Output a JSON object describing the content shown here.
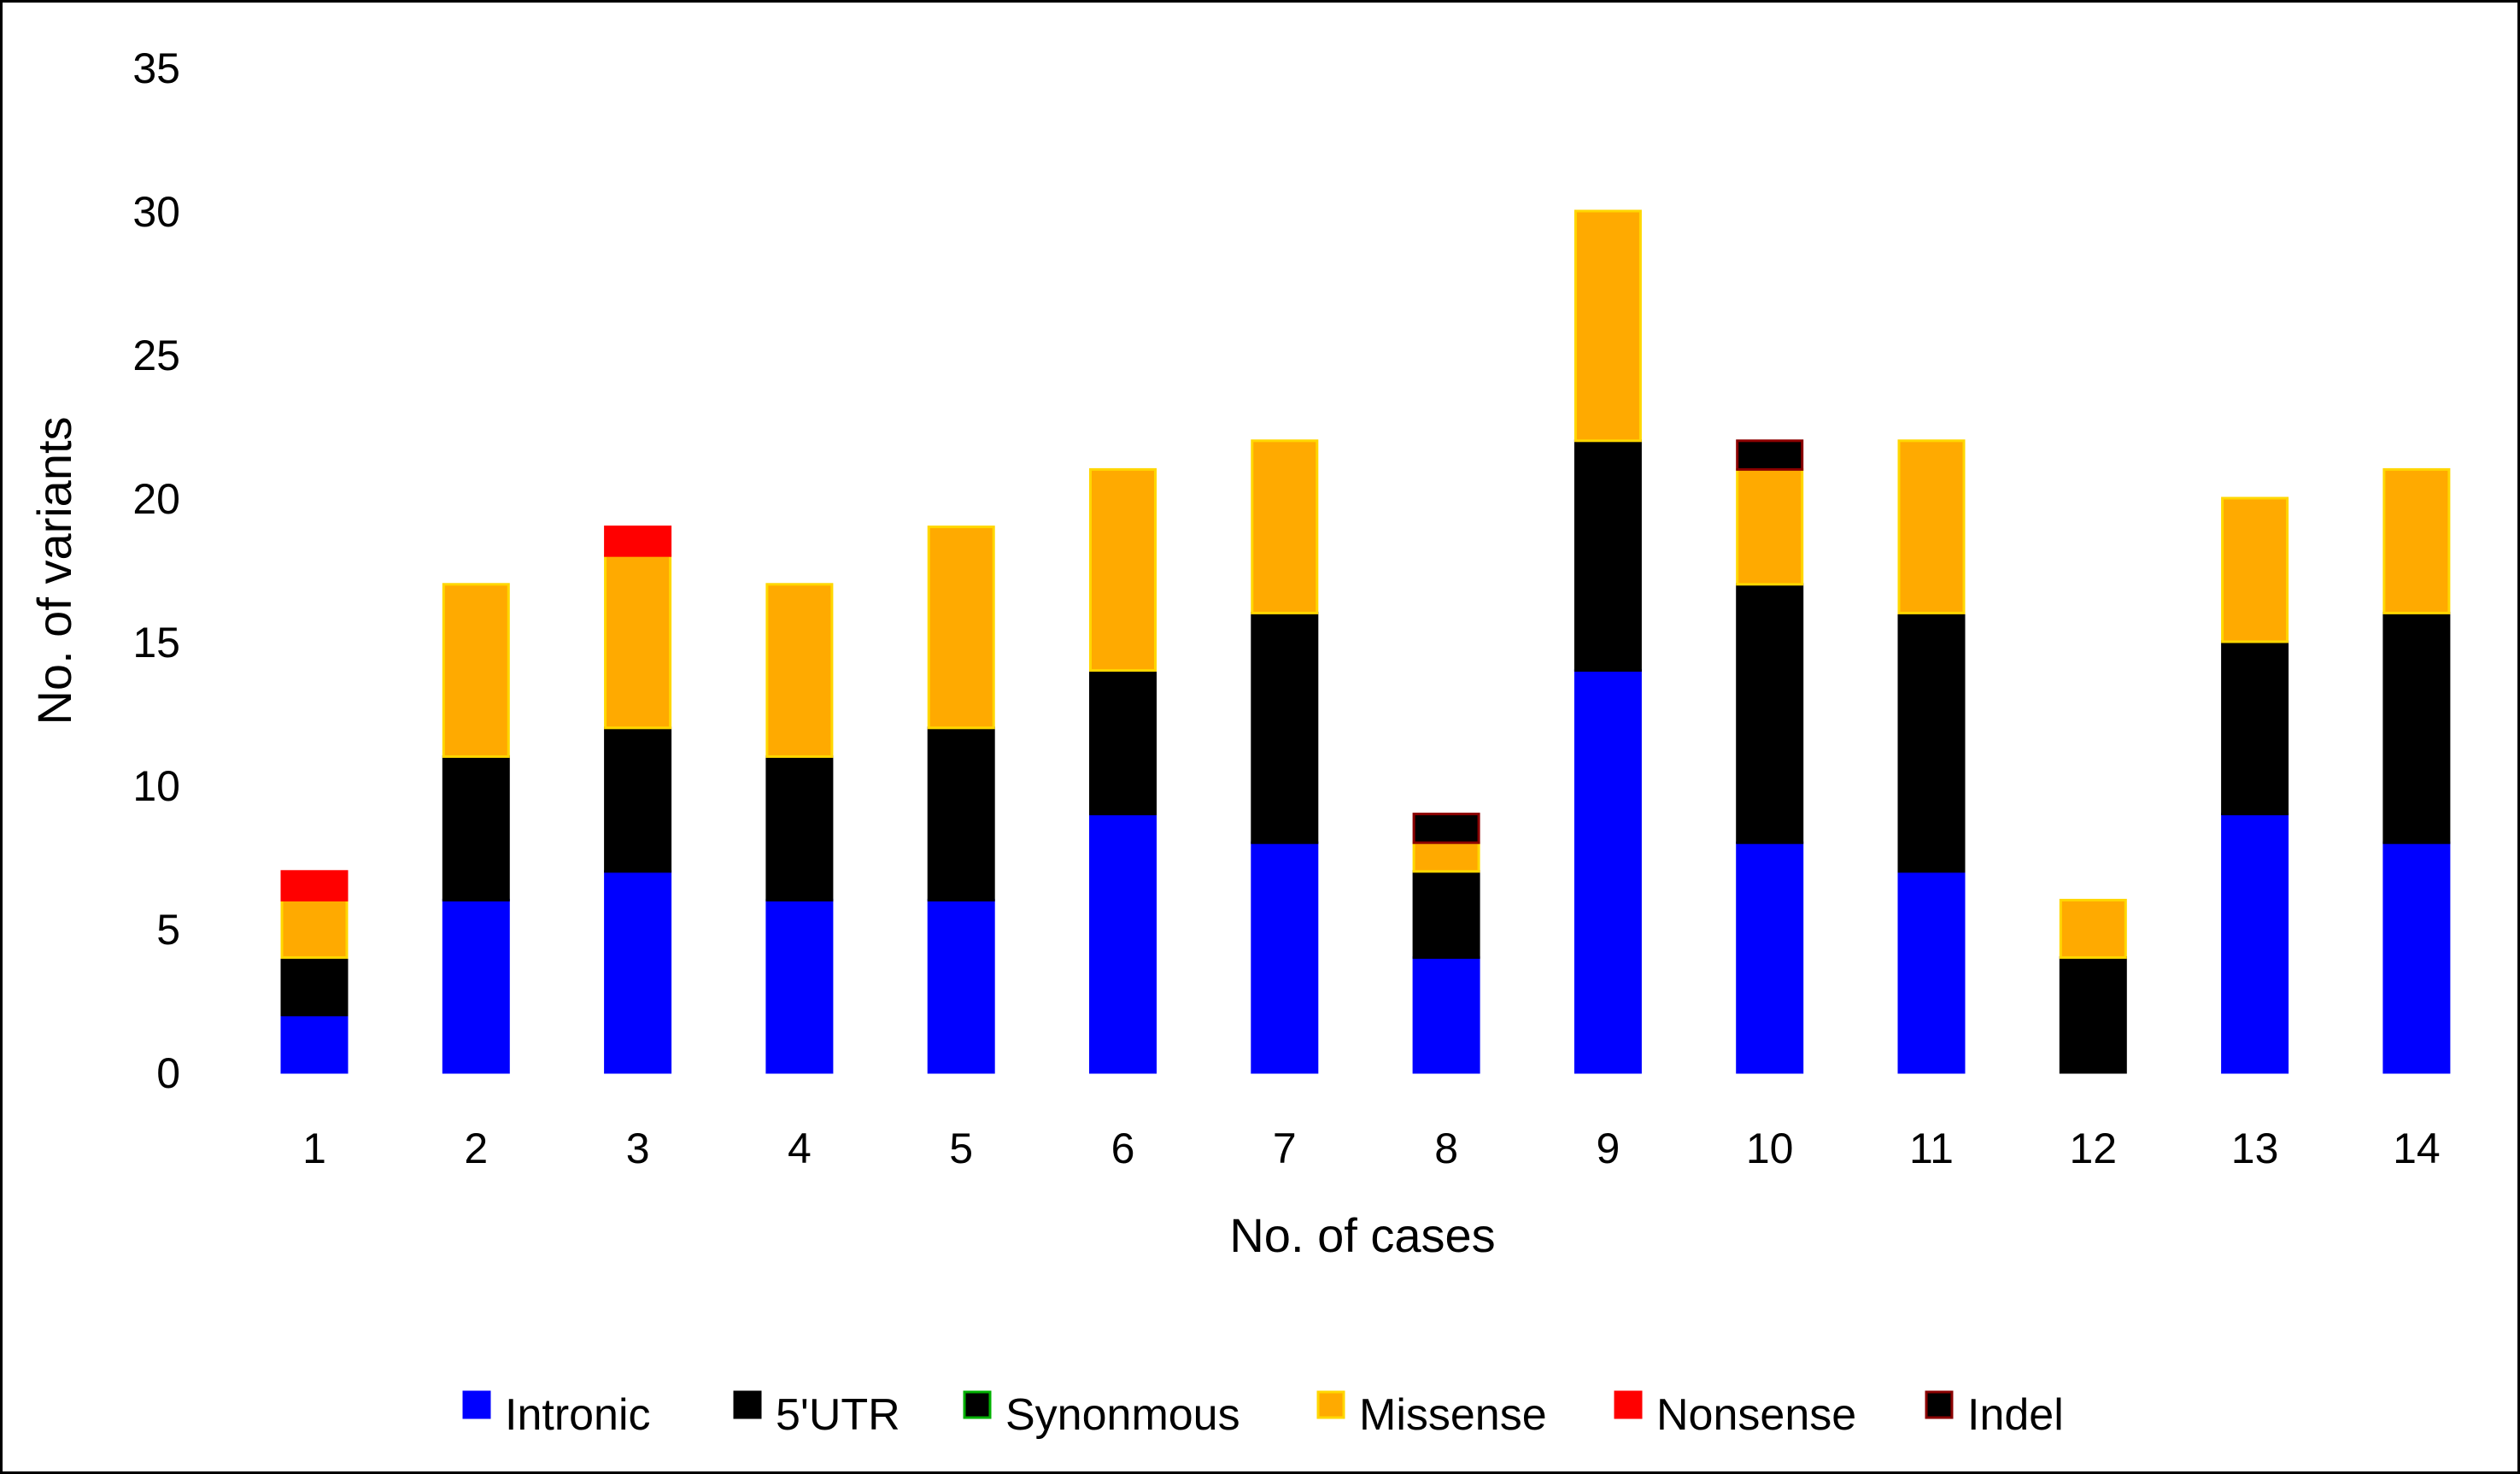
{
  "chart_data": {
    "type": "bar",
    "stacked": true,
    "title": "",
    "xlabel": "No. of cases",
    "ylabel": "No. of variants",
    "ylim": [
      0,
      35
    ],
    "yticks": [
      "0",
      "5",
      "10",
      "15",
      "20",
      "25",
      "30",
      "35"
    ],
    "categories": [
      "1",
      "2",
      "3",
      "4",
      "5",
      "6",
      "7",
      "8",
      "9",
      "10",
      "11",
      "12",
      "13",
      "14"
    ],
    "grid": false,
    "legend_position": "bottom",
    "series": [
      {
        "name": "Intronic",
        "color": "#0000ff",
        "values": [
          2,
          6,
          7,
          6,
          6,
          9,
          8,
          4,
          14,
          8,
          7,
          0,
          9,
          8
        ]
      },
      {
        "name": "5'UTR",
        "color": "#000000",
        "values": [
          2,
          5,
          5,
          5,
          6,
          5,
          8,
          3,
          8,
          9,
          9,
          4,
          6,
          8
        ]
      },
      {
        "name": "Synonmous",
        "color": "#000000",
        "stroke": "#00b000",
        "values": [
          0,
          0,
          0,
          0,
          0,
          0,
          0,
          0,
          0,
          0,
          0,
          0,
          0,
          0
        ]
      },
      {
        "name": "Missense",
        "color": "#ffaa00",
        "stroke": "#ffd700",
        "values": [
          2,
          6,
          6,
          6,
          7,
          7,
          6,
          1,
          8,
          4,
          6,
          2,
          5,
          5
        ]
      },
      {
        "name": "Nonsense",
        "color": "#ff0000",
        "values": [
          1,
          0,
          1,
          0,
          0,
          0,
          0,
          0,
          0,
          0,
          0,
          0,
          0,
          0
        ]
      },
      {
        "name": "Indel",
        "color": "#000000",
        "stroke": "#8b0000",
        "values": [
          0,
          0,
          0,
          0,
          0,
          0,
          0,
          1,
          0,
          1,
          0,
          0,
          0,
          0
        ]
      }
    ]
  }
}
